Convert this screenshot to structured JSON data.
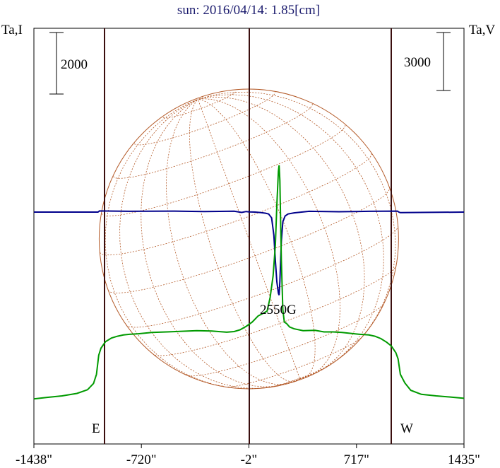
{
  "chart_data": {
    "type": "line",
    "title": "sun: 2016/04/14: 1.85[cm]",
    "left_axis_label": "Ta,I",
    "right_axis_label": "Ta,V",
    "x_ticks": [
      "-1438\"",
      "-720\"",
      "-2\"",
      "717\"",
      "1435\""
    ],
    "xlim": [
      -1438,
      1435
    ],
    "limb_positions": [
      -1005,
      1000
    ],
    "limb_labels": {
      "east": "E",
      "west": "W"
    },
    "left_scale_bar_label": "2000",
    "right_scale_bar_label": "3000",
    "annotation": "2550G",
    "annotation_x": 200,
    "disk": {
      "center_x": -2,
      "radius": 1000,
      "grid": "dotted",
      "color": "#b45a28"
    },
    "colors": {
      "stokes_i": "#009a00",
      "stokes_v": "#00008b",
      "frame": "#000000",
      "limb_lines": "#3a0e0e",
      "title": "#1c1c6e",
      "disk": "#b45a28"
    },
    "series": [
      {
        "name": "I",
        "color": "#009a00",
        "x": [
          -1438,
          -1350,
          -1250,
          -1150,
          -1080,
          -1040,
          -1020,
          -1005,
          -990,
          -960,
          -920,
          -880,
          -840,
          -800,
          -740,
          -650,
          -550,
          -450,
          -350,
          -250,
          -150,
          -100,
          -60,
          -20,
          20,
          60,
          100,
          120,
          140,
          160,
          175,
          185,
          195,
          200,
          205,
          215,
          225,
          235,
          250,
          270,
          300,
          360,
          440,
          500,
          560,
          620,
          680,
          740,
          800,
          840,
          880,
          920,
          950,
          980,
          995,
          1010,
          1040,
          1080,
          1150,
          1250,
          1350,
          1435
        ],
        "values": [
          200,
          250,
          300,
          380,
          500,
          700,
          1000,
          1620,
          1850,
          2060,
          2180,
          2240,
          2280,
          2300,
          2320,
          2360,
          2380,
          2400,
          2420,
          2410,
          2370,
          2390,
          2450,
          2560,
          2700,
          2900,
          3000,
          3060,
          3500,
          4200,
          5200,
          6500,
          7600,
          7800,
          7300,
          4700,
          3100,
          2700,
          2650,
          2540,
          2480,
          2420,
          2430,
          2380,
          2380,
          2360,
          2330,
          2300,
          2280,
          2240,
          2160,
          2040,
          1920,
          1700,
          1500,
          1000,
          720,
          480,
          350,
          300,
          260,
          220
        ]
      },
      {
        "name": "V",
        "color": "#00008b",
        "x": [
          -1438,
          -1010,
          -1000,
          -800,
          -500,
          -300,
          -100,
          -50,
          -20,
          0,
          40,
          80,
          110,
          130,
          150,
          165,
          175,
          185,
          195,
          200,
          205,
          215,
          225,
          240,
          260,
          300,
          400,
          600,
          800,
          990,
          1000,
          1010,
          1435
        ],
        "values": [
          0,
          0,
          60,
          40,
          50,
          30,
          45,
          -20,
          30,
          10,
          0,
          -30,
          -60,
          -100,
          -300,
          -1200,
          -2500,
          -3600,
          -4200,
          -4300,
          -3600,
          -1500,
          -500,
          -200,
          -100,
          -40,
          40,
          20,
          40,
          50,
          0,
          -30,
          0
        ]
      }
    ]
  }
}
